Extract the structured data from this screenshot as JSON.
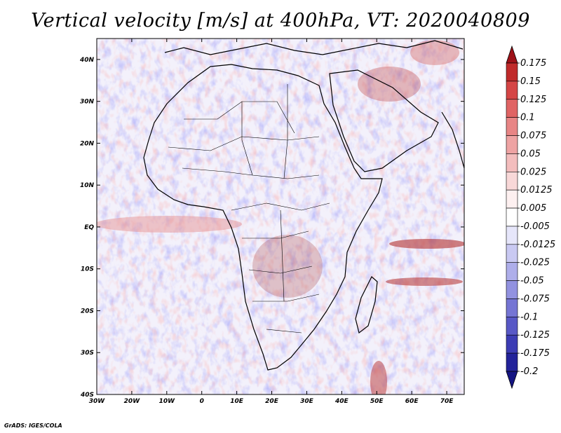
{
  "chart_data": {
    "type": "heatmap",
    "title": "Vertical velocity [m/s] at 400hPa, VT: 2020040809",
    "variable": "Vertical velocity",
    "units": "m/s",
    "level": "400hPa",
    "valid_time": "2020040809",
    "x_axis": {
      "range": [
        -30,
        75
      ],
      "ticks": [
        "30W",
        "20W",
        "10W",
        "0",
        "10E",
        "20E",
        "30E",
        "40E",
        "50E",
        "60E",
        "70E"
      ],
      "tick_values": [
        -30,
        -20,
        -10,
        0,
        10,
        20,
        30,
        40,
        50,
        60,
        70
      ]
    },
    "y_axis": {
      "range": [
        -40,
        45
      ],
      "ticks": [
        "40S",
        "30S",
        "20S",
        "10S",
        "EQ",
        "10N",
        "20N",
        "30N",
        "40N"
      ],
      "tick_values": [
        -40,
        -30,
        -20,
        -10,
        0,
        10,
        20,
        30,
        40
      ]
    },
    "colorbar": {
      "levels": [
        "0.175",
        "0.15",
        "0.125",
        "0.1",
        "0.075",
        "0.05",
        "0.025",
        "0.0125",
        "0.005",
        "-0.005",
        "-0.0125",
        "-0.025",
        "-0.05",
        "-0.075",
        "-0.1",
        "-0.125",
        "-0.175",
        "-0.2"
      ],
      "colors": [
        "#9e1118",
        "#c02a2a",
        "#d54545",
        "#e06464",
        "#e88585",
        "#eea3a3",
        "#f3bdbd",
        "#f8d8d8",
        "#fdf0f0",
        "#ffffff",
        "#e6e6fa",
        "#c9c9f2",
        "#aeaeea",
        "#9292e0",
        "#7575d4",
        "#5858c6",
        "#3c3cb4",
        "#23239a",
        "#141482"
      ]
    },
    "features": [
      "Africa",
      "Arabian Peninsula",
      "Madagascar",
      "Mediterranean"
    ]
  },
  "footer": "GrADS: IGES/COLA"
}
